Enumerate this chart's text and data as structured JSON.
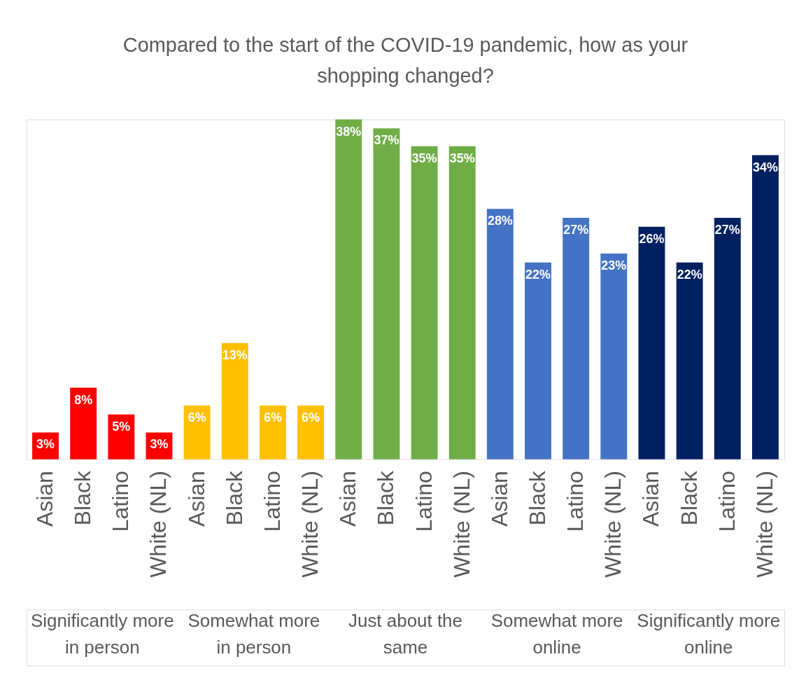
{
  "chart_data": {
    "type": "bar",
    "title": "Compared to the start of the COVID-19 pandemic, how as your shopping changed?",
    "categories": [
      "Asian",
      "Black",
      "Latino",
      "White (NL)",
      "Asian",
      "Black",
      "Latino",
      "White (NL)",
      "Asian",
      "Black",
      "Latino",
      "White (NL)",
      "Asian",
      "Black",
      "Latino",
      "White (NL)",
      "Asian",
      "Black",
      "Latino",
      "White (NL)"
    ],
    "values": [
      3,
      8,
      5,
      3,
      6,
      13,
      6,
      6,
      38,
      37,
      35,
      35,
      28,
      22,
      27,
      23,
      26,
      22,
      27,
      34
    ],
    "value_labels": [
      "3%",
      "8%",
      "5%",
      "3%",
      "6%",
      "13%",
      "6%",
      "6%",
      "38%",
      "37%",
      "35%",
      "35%",
      "28%",
      "22%",
      "27%",
      "23%",
      "26%",
      "22%",
      "27%",
      "34%"
    ],
    "colors": [
      "#ff0000",
      "#ff0000",
      "#ff0000",
      "#ff0000",
      "#ffc000",
      "#ffc000",
      "#ffc000",
      "#ffc000",
      "#70ad47",
      "#70ad47",
      "#70ad47",
      "#70ad47",
      "#4472c4",
      "#4472c4",
      "#4472c4",
      "#4472c4",
      "#002060",
      "#002060",
      "#002060",
      "#002060"
    ],
    "annotations": [
      "Significantly more in person",
      "Somewhat more in person",
      "Just about the same",
      "Somewhat more online",
      "Significantly more online"
    ]
  }
}
